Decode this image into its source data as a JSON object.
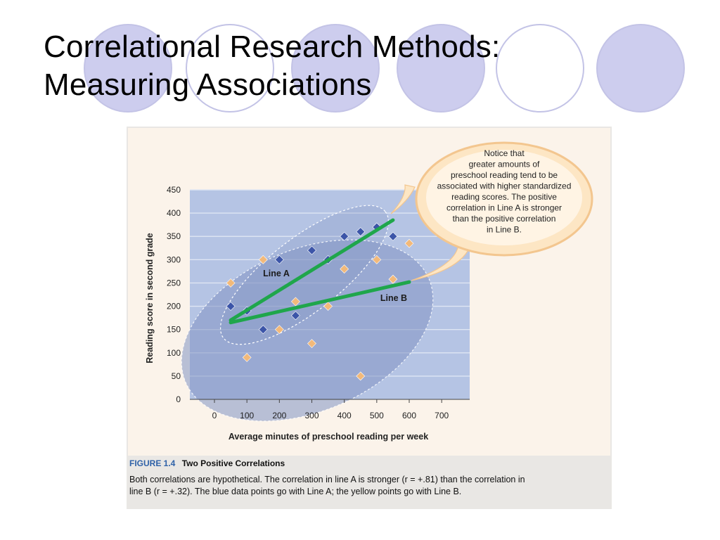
{
  "slide": {
    "title_line1": "Correlational Research Methods:",
    "title_line2": "Measuring Associations"
  },
  "figure": {
    "number": "FIGURE 1.4",
    "name": "Two Positive Correlations",
    "caption_line1": "Both correlations are hypothetical. The correlation in line A is stronger (r = +.81) than the correlation in",
    "caption_line2": "line B (r = +.32). The blue data points go with Line A; the yellow points go with Line B."
  },
  "callout": {
    "lines": [
      "Notice that",
      "greater amounts of",
      "preschool reading tend to be",
      "associated with higher standardized",
      "reading scores. The positive",
      "correlation in Line A is stronger",
      "than the positive correlation",
      "in Line B."
    ]
  },
  "colors": {
    "plot_bg": "#b5c4e4",
    "gridline": "#dfe6f3",
    "ellipse": "#8193c2",
    "blue_point": "#3c55a8",
    "yellow_point": "#f2b97a",
    "trend_line": "#1fa64b",
    "panel_bg": "#fbf3ea",
    "callout_fill": "#fde6c4",
    "caption_accent": "#2f62a8"
  },
  "chart_data": {
    "type": "scatter",
    "xlabel": "Average minutes of preschool reading per week",
    "ylabel": "Reading score in second grade",
    "xlim": [
      0,
      700
    ],
    "ylim": [
      0,
      450
    ],
    "xticks": [
      0,
      100,
      200,
      300,
      400,
      500,
      600,
      700
    ],
    "yticks": [
      0,
      50,
      100,
      150,
      200,
      250,
      300,
      350,
      400,
      450
    ],
    "grid": true,
    "series": [
      {
        "name": "Line A",
        "color": "#3c55a8",
        "points": [
          [
            50,
            200
          ],
          [
            100,
            190
          ],
          [
            150,
            150
          ],
          [
            200,
            300
          ],
          [
            250,
            180
          ],
          [
            300,
            320
          ],
          [
            350,
            300
          ],
          [
            400,
            350
          ],
          [
            450,
            360
          ],
          [
            500,
            370
          ],
          [
            550,
            350
          ]
        ],
        "trend": [
          [
            50,
            170
          ],
          [
            550,
            385
          ]
        ]
      },
      {
        "name": "Line B",
        "color": "#f2b97a",
        "points": [
          [
            50,
            250
          ],
          [
            100,
            90
          ],
          [
            150,
            300
          ],
          [
            200,
            150
          ],
          [
            250,
            210
          ],
          [
            300,
            120
          ],
          [
            350,
            200
          ],
          [
            400,
            280
          ],
          [
            450,
            50
          ],
          [
            500,
            300
          ],
          [
            550,
            258
          ],
          [
            600,
            335
          ]
        ],
        "trend": [
          [
            50,
            165
          ],
          [
            600,
            252
          ]
        ]
      }
    ]
  }
}
